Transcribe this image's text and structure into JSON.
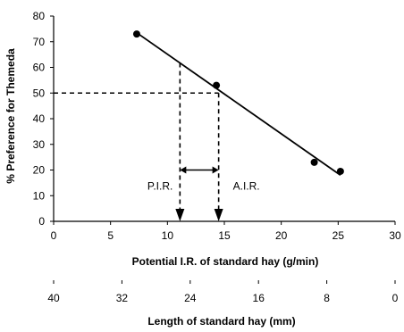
{
  "chart_data": {
    "type": "scatter",
    "title": "",
    "ylabel": "% Preference for Themeda",
    "xlabel": "Potential I.R. of standard hay (g/min)",
    "xlabel2": "Length of standard hay (mm)",
    "xlim": [
      0,
      30
    ],
    "ylim": [
      0,
      80
    ],
    "x_ticks": [
      0,
      5,
      10,
      15,
      20,
      25,
      30
    ],
    "x_tick_labels": [
      "0",
      "5",
      "10",
      "15",
      "20",
      "25",
      "30"
    ],
    "y_ticks": [
      0,
      10,
      20,
      30,
      40,
      50,
      60,
      70,
      80
    ],
    "y_tick_labels": [
      "0",
      "10",
      "20",
      "30",
      "40",
      "50",
      "60",
      "70",
      "80"
    ],
    "secondary_x_ticks": [
      40,
      32,
      24,
      16,
      8,
      0
    ],
    "secondary_x_tick_labels": [
      "40",
      "32",
      "24",
      "16",
      "8",
      "0"
    ],
    "grid": false,
    "series": [
      {
        "x": [
          7.3,
          14.3,
          22.9,
          25.2
        ],
        "y": [
          73,
          53,
          23,
          19.5
        ]
      }
    ],
    "fit_line": {
      "x": [
        7.3,
        25.2
      ],
      "y": [
        73.5,
        18
      ]
    },
    "reference_level_y": 50,
    "reference_x": [
      11.1,
      14.5
    ],
    "annotations": [
      {
        "text": "P.I.R.",
        "x": 11.1,
        "y": 20
      },
      {
        "text": "A.I.R.",
        "x": 14.5,
        "y": 20
      }
    ]
  }
}
